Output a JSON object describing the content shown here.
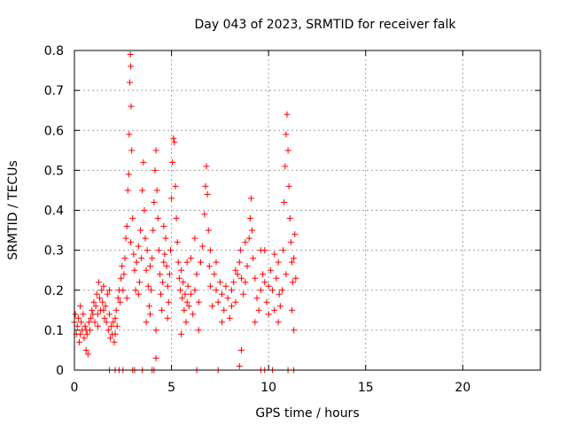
{
  "chart_data": {
    "type": "scatter",
    "title": "Day 043 of 2023, SRMTID for receiver falk",
    "xlabel": "GPS time / hours",
    "ylabel": "SRMTID / TECUs",
    "xlim": [
      0,
      24
    ],
    "ylim": [
      0,
      0.8
    ],
    "x_ticks": [
      0,
      5,
      10,
      15,
      20
    ],
    "y_ticks": [
      0,
      0.1,
      0.2,
      0.3,
      0.4,
      0.5,
      0.6,
      0.7,
      0.8
    ],
    "grid": true,
    "marker": "plus",
    "series": [
      {
        "name": "SRMTID",
        "color": "#ff0000",
        "points": [
          [
            0.0,
            0.12
          ],
          [
            0.05,
            0.14
          ],
          [
            0.1,
            0.09
          ],
          [
            0.15,
            0.11
          ],
          [
            0.2,
            0.13
          ],
          [
            0.25,
            0.07
          ],
          [
            0.3,
            0.16
          ],
          [
            0.35,
            0.12
          ],
          [
            0.4,
            0.1
          ],
          [
            0.45,
            0.14
          ],
          [
            0.5,
            0.08
          ],
          [
            0.55,
            0.11
          ],
          [
            0.6,
            0.05
          ],
          [
            0.65,
            0.09
          ],
          [
            0.7,
            0.04
          ],
          [
            0.75,
            0.12
          ],
          [
            0.8,
            0.1
          ],
          [
            0.85,
            0.13
          ],
          [
            0.9,
            0.15
          ],
          [
            0.95,
            0.14
          ],
          [
            1.0,
            0.17
          ],
          [
            1.05,
            0.12
          ],
          [
            1.1,
            0.16
          ],
          [
            1.15,
            0.19
          ],
          [
            1.2,
            0.14
          ],
          [
            1.25,
            0.22
          ],
          [
            1.3,
            0.18
          ],
          [
            1.35,
            0.15
          ],
          [
            1.4,
            0.2
          ],
          [
            1.45,
            0.17
          ],
          [
            1.5,
            0.21
          ],
          [
            1.55,
            0.13
          ],
          [
            1.6,
            0.16
          ],
          [
            1.65,
            0.12
          ],
          [
            1.7,
            0.19
          ],
          [
            1.75,
            0.1
          ],
          [
            1.8,
            0.14
          ],
          [
            1.85,
            0.08
          ],
          [
            1.9,
            0.11
          ],
          [
            1.95,
            0.09
          ],
          [
            2.0,
            0.12
          ],
          [
            2.05,
            0.07
          ],
          [
            2.1,
            0.13
          ],
          [
            2.15,
            0.15
          ],
          [
            2.2,
            0.11
          ],
          [
            2.25,
            0.18
          ],
          [
            2.3,
            0.2
          ],
          [
            2.35,
            0.17
          ],
          [
            2.4,
            0.23
          ],
          [
            2.45,
            0.26
          ],
          [
            2.5,
            0.2
          ],
          [
            2.55,
            0.24
          ],
          [
            2.6,
            0.28
          ],
          [
            2.65,
            0.33
          ],
          [
            2.7,
            0.36
          ],
          [
            2.75,
            0.45
          ],
          [
            2.8,
            0.49
          ],
          [
            2.82,
            0.59
          ],
          [
            2.85,
            0.72
          ],
          [
            2.88,
            0.79
          ],
          [
            2.9,
            0.76
          ],
          [
            2.92,
            0.66
          ],
          [
            2.95,
            0.55
          ],
          [
            3.0,
            0.38
          ],
          [
            3.05,
            0.29
          ],
          [
            3.1,
            0.25
          ],
          [
            3.15,
            0.2
          ],
          [
            3.2,
            0.27
          ],
          [
            3.3,
            0.31
          ],
          [
            3.35,
            0.22
          ],
          [
            3.4,
            0.35
          ],
          [
            3.45,
            0.28
          ],
          [
            3.5,
            0.45
          ],
          [
            3.55,
            0.52
          ],
          [
            3.6,
            0.4
          ],
          [
            3.65,
            0.33
          ],
          [
            3.7,
            0.25
          ],
          [
            3.75,
            0.3
          ],
          [
            3.8,
            0.21
          ],
          [
            3.85,
            0.16
          ],
          [
            3.9,
            0.14
          ],
          [
            3.95,
            0.2
          ],
          [
            4.0,
            0.28
          ],
          [
            4.05,
            0.35
          ],
          [
            4.1,
            0.42
          ],
          [
            4.15,
            0.5
          ],
          [
            4.2,
            0.55
          ],
          [
            4.25,
            0.45
          ],
          [
            4.3,
            0.38
          ],
          [
            4.35,
            0.3
          ],
          [
            4.4,
            0.24
          ],
          [
            4.45,
            0.19
          ],
          [
            4.5,
            0.15
          ],
          [
            4.55,
            0.22
          ],
          [
            4.6,
            0.27
          ],
          [
            4.65,
            0.29
          ],
          [
            4.7,
            0.33
          ],
          [
            4.75,
            0.26
          ],
          [
            4.8,
            0.21
          ],
          [
            4.85,
            0.17
          ],
          [
            4.9,
            0.24
          ],
          [
            4.95,
            0.3
          ],
          [
            5.0,
            0.43
          ],
          [
            5.05,
            0.52
          ],
          [
            5.1,
            0.58
          ],
          [
            5.15,
            0.57
          ],
          [
            5.2,
            0.46
          ],
          [
            5.25,
            0.38
          ],
          [
            5.3,
            0.32
          ],
          [
            5.35,
            0.27
          ],
          [
            5.4,
            0.23
          ],
          [
            5.45,
            0.2
          ],
          [
            5.5,
            0.25
          ],
          [
            5.55,
            0.18
          ],
          [
            5.6,
            0.22
          ],
          [
            5.65,
            0.15
          ],
          [
            5.7,
            0.19
          ],
          [
            5.75,
            0.12
          ],
          [
            5.8,
            0.17
          ],
          [
            5.85,
            0.21
          ],
          [
            5.9,
            0.16
          ],
          [
            6.0,
            0.19
          ],
          [
            6.1,
            0.14
          ],
          [
            6.2,
            0.2
          ],
          [
            6.3,
            0.24
          ],
          [
            6.4,
            0.17
          ],
          [
            6.5,
            0.27
          ],
          [
            6.6,
            0.31
          ],
          [
            6.7,
            0.39
          ],
          [
            6.75,
            0.46
          ],
          [
            6.8,
            0.51
          ],
          [
            6.85,
            0.44
          ],
          [
            6.9,
            0.35
          ],
          [
            6.95,
            0.26
          ],
          [
            7.0,
            0.21
          ],
          [
            7.1,
            0.16
          ],
          [
            7.2,
            0.24
          ],
          [
            7.3,
            0.2
          ],
          [
            7.4,
            0.17
          ],
          [
            7.5,
            0.22
          ],
          [
            7.6,
            0.19
          ],
          [
            7.7,
            0.15
          ],
          [
            7.8,
            0.21
          ],
          [
            7.9,
            0.18
          ],
          [
            8.0,
            0.13
          ],
          [
            8.1,
            0.2
          ],
          [
            8.2,
            0.22
          ],
          [
            8.3,
            0.17
          ],
          [
            8.4,
            0.24
          ],
          [
            8.5,
            0.27
          ],
          [
            8.55,
            0.3
          ],
          [
            8.6,
            0.23
          ],
          [
            8.7,
            0.19
          ],
          [
            8.8,
            0.22
          ],
          [
            8.9,
            0.26
          ],
          [
            9.0,
            0.33
          ],
          [
            9.05,
            0.38
          ],
          [
            9.1,
            0.43
          ],
          [
            9.15,
            0.35
          ],
          [
            9.2,
            0.28
          ],
          [
            9.3,
            0.23
          ],
          [
            9.4,
            0.18
          ],
          [
            9.5,
            0.15
          ],
          [
            9.6,
            0.2
          ],
          [
            9.7,
            0.24
          ],
          [
            9.8,
            0.22
          ],
          [
            9.9,
            0.17
          ],
          [
            10.0,
            0.21
          ],
          [
            10.1,
            0.25
          ],
          [
            10.2,
            0.2
          ],
          [
            10.3,
            0.15
          ],
          [
            10.4,
            0.23
          ],
          [
            10.5,
            0.27
          ],
          [
            10.55,
            0.19
          ],
          [
            10.6,
            0.16
          ],
          [
            10.7,
            0.2
          ],
          [
            10.75,
            0.3
          ],
          [
            10.8,
            0.42
          ],
          [
            10.85,
            0.51
          ],
          [
            10.9,
            0.59
          ],
          [
            10.95,
            0.64
          ],
          [
            11.0,
            0.55
          ],
          [
            11.05,
            0.46
          ],
          [
            11.1,
            0.38
          ],
          [
            11.15,
            0.32
          ],
          [
            11.2,
            0.27
          ],
          [
            11.25,
            0.22
          ],
          [
            11.3,
            0.28
          ],
          [
            11.35,
            0.34
          ],
          [
            11.4,
            0.23
          ],
          [
            0.3,
            0.09
          ],
          [
            0.6,
            0.1
          ],
          [
            1.2,
            0.11
          ],
          [
            1.5,
            0.15
          ],
          [
            2.1,
            0.09
          ],
          [
            2.7,
            0.18
          ],
          [
            3.3,
            0.19
          ],
          [
            3.7,
            0.12
          ],
          [
            4.2,
            0.1
          ],
          [
            4.8,
            0.13
          ],
          [
            5.5,
            0.09
          ],
          [
            6.0,
            0.28
          ],
          [
            6.4,
            0.1
          ],
          [
            7.0,
            0.3
          ],
          [
            7.6,
            0.12
          ],
          [
            8.1,
            0.16
          ],
          [
            8.6,
            0.05
          ],
          [
            8.8,
            0.32
          ],
          [
            9.3,
            0.12
          ],
          [
            9.6,
            0.3
          ],
          [
            10.0,
            0.14
          ],
          [
            10.5,
            0.12
          ],
          [
            10.9,
            0.24
          ],
          [
            11.2,
            0.15
          ],
          [
            11.3,
            0.1
          ],
          [
            1.8,
            0.2
          ],
          [
            2.9,
            0.32
          ],
          [
            3.9,
            0.26
          ],
          [
            4.6,
            0.36
          ],
          [
            5.8,
            0.27
          ],
          [
            6.2,
            0.33
          ],
          [
            7.3,
            0.27
          ],
          [
            8.3,
            0.25
          ],
          [
            9.8,
            0.3
          ],
          [
            10.3,
            0.29
          ],
          [
            1.8,
            0.0
          ],
          [
            2.1,
            0.0
          ],
          [
            2.3,
            0.0
          ],
          [
            2.5,
            0.0
          ],
          [
            3.0,
            0.0
          ],
          [
            3.1,
            0.0
          ],
          [
            4.0,
            0.0
          ],
          [
            4.1,
            0.0
          ],
          [
            6.3,
            0.0
          ],
          [
            7.4,
            0.0
          ],
          [
            8.5,
            0.01
          ],
          [
            9.6,
            0.0
          ],
          [
            9.8,
            0.0
          ],
          [
            10.2,
            0.0
          ],
          [
            11.0,
            0.0
          ],
          [
            11.3,
            0.0
          ],
          [
            3.5,
            0.0
          ],
          [
            4.2,
            0.03
          ]
        ]
      }
    ]
  }
}
